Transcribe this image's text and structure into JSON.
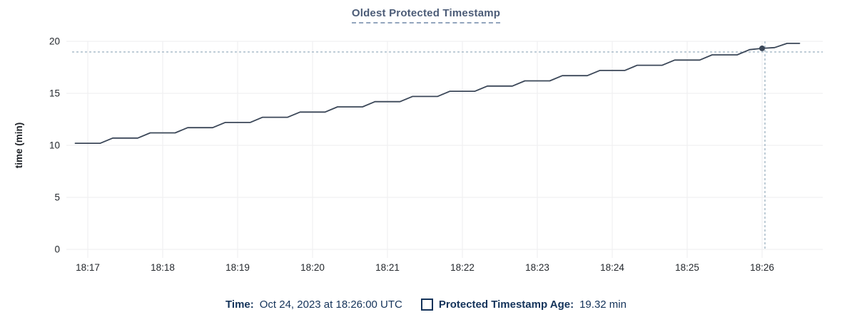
{
  "panel": {
    "title": "Oldest Protected Timestamp"
  },
  "legend": {
    "time_label": "Time:",
    "time_value": "Oct 24, 2023 at 18:26:00 UTC",
    "series_swatch": "square-outline-icon",
    "series_label": "Protected Timestamp Age:",
    "series_value": "19.32 min"
  },
  "colors": {
    "background": "#ffffff",
    "title": "#4c5c77",
    "title_underline": "#93a5bd",
    "line": "#3b4758",
    "grid": "#ededef",
    "crosshair": "#a2b6c5",
    "tick_label": "#24282d",
    "axis_title": "#1d2126",
    "legend_text": "#14335a"
  },
  "chart_data": {
    "type": "line",
    "title": "Oldest Protected Timestamp",
    "xlabel": "",
    "ylabel": "time (min)",
    "ylim": [
      0,
      20
    ],
    "yticks": [
      0,
      5,
      10,
      15,
      20
    ],
    "xticks": [
      "18:17",
      "18:18",
      "18:19",
      "18:20",
      "18:21",
      "18:22",
      "18:23",
      "18:24",
      "18:25",
      "18:26"
    ],
    "x_unit": "seconds relative to 18:17:00",
    "x_range_seconds": [
      -10,
      570
    ],
    "grid": true,
    "legend_position": "bottom",
    "series": [
      {
        "name": "Protected Timestamp Age",
        "points": [
          [
            -10,
            10.2
          ],
          [
            10,
            10.2
          ],
          [
            20,
            10.7
          ],
          [
            40,
            10.7
          ],
          [
            50,
            11.2
          ],
          [
            70,
            11.2
          ],
          [
            80,
            11.7
          ],
          [
            100,
            11.7
          ],
          [
            110,
            12.2
          ],
          [
            130,
            12.2
          ],
          [
            140,
            12.7
          ],
          [
            160,
            12.7
          ],
          [
            170,
            13.2
          ],
          [
            190,
            13.2
          ],
          [
            200,
            13.7
          ],
          [
            220,
            13.7
          ],
          [
            230,
            14.2
          ],
          [
            250,
            14.2
          ],
          [
            260,
            14.7
          ],
          [
            280,
            14.7
          ],
          [
            290,
            15.2
          ],
          [
            310,
            15.2
          ],
          [
            320,
            15.7
          ],
          [
            340,
            15.7
          ],
          [
            350,
            16.2
          ],
          [
            370,
            16.2
          ],
          [
            380,
            16.7
          ],
          [
            400,
            16.7
          ],
          [
            410,
            17.2
          ],
          [
            430,
            17.2
          ],
          [
            440,
            17.7
          ],
          [
            460,
            17.7
          ],
          [
            470,
            18.2
          ],
          [
            490,
            18.2
          ],
          [
            500,
            18.7
          ],
          [
            520,
            18.7
          ],
          [
            530,
            19.2
          ],
          [
            540,
            19.32
          ],
          [
            550,
            19.4
          ],
          [
            560,
            19.8
          ],
          [
            570,
            19.8
          ]
        ]
      }
    ],
    "highlight": {
      "time": "18:26:00",
      "x_seconds": 540,
      "value": 19.32,
      "value_label": "19.32 min"
    }
  }
}
